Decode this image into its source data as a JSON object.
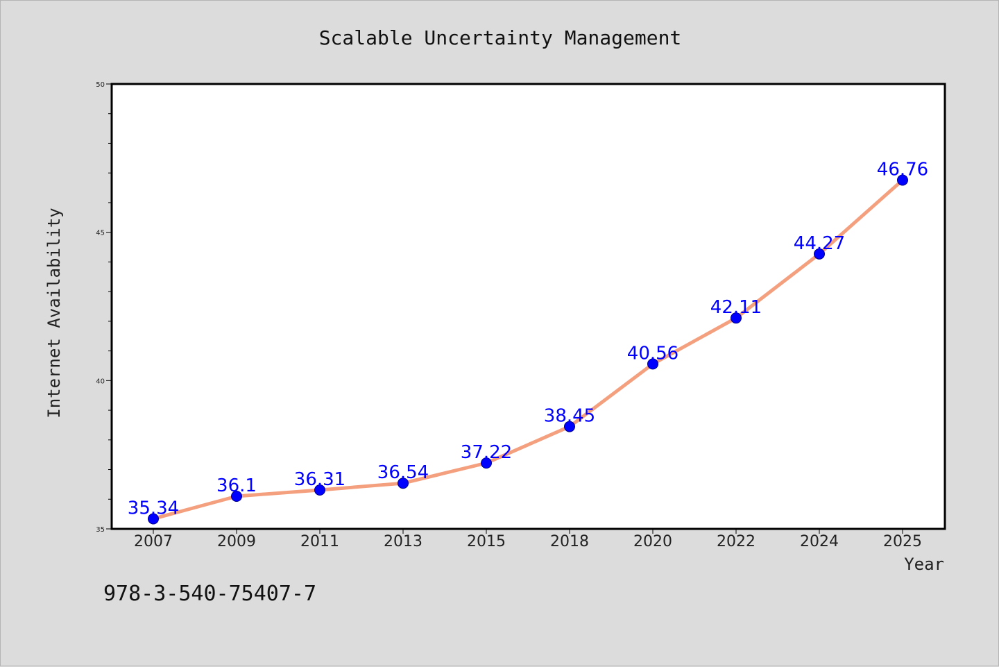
{
  "chart_data": {
    "type": "line",
    "title": "Scalable Uncertainty Management",
    "xlabel": "Year",
    "ylabel": "Internet Availability",
    "categories": [
      "2007",
      "2009",
      "2011",
      "2013",
      "2015",
      "2018",
      "2020",
      "2022",
      "2024",
      "2025"
    ],
    "series": [
      {
        "values": [
          35.34,
          36.1,
          36.31,
          36.54,
          37.22,
          38.45,
          40.56,
          42.11,
          44.27,
          46.76
        ],
        "labels": [
          "35.34",
          "36.1",
          "36.31",
          "36.54",
          "37.22",
          "38.45",
          "40.56",
          "42.11",
          "44.27",
          "46.76"
        ],
        "line_color": "#f4a07f",
        "marker_color": "#0000ff"
      }
    ],
    "ylim": [
      35,
      50
    ],
    "yticks": [
      "35",
      "40",
      "45",
      "50"
    ],
    "grid": false,
    "legend": "none"
  },
  "annotation": "978-3-540-75407-7"
}
